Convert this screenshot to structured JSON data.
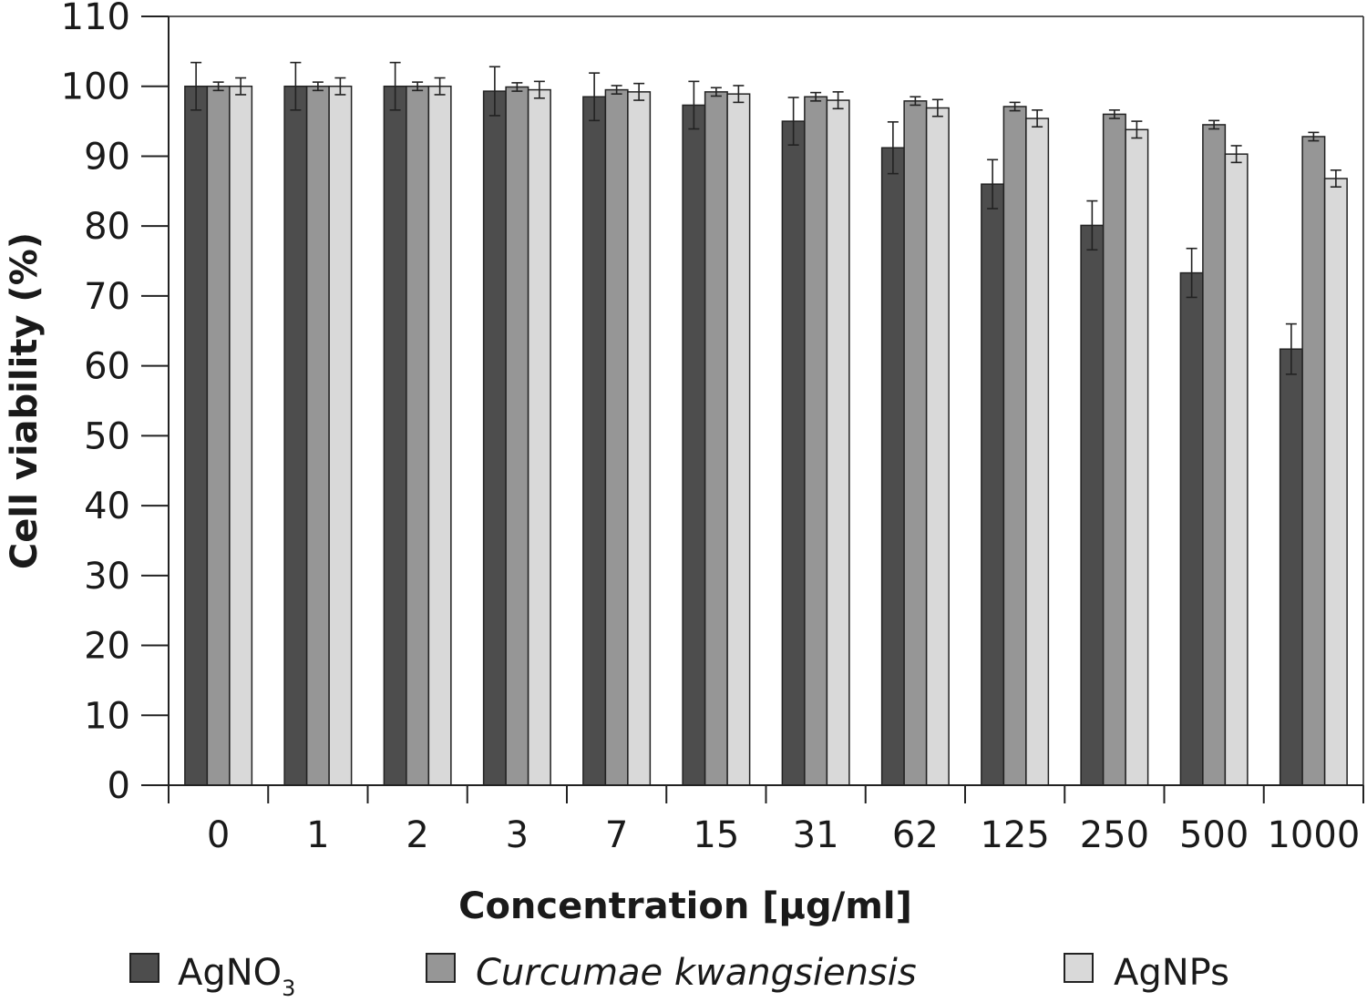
{
  "chart_data": {
    "type": "bar",
    "title": "",
    "xlabel": "Concentration [µg/ml]",
    "ylabel": "Cell viability (%)",
    "ylim": [
      0,
      110
    ],
    "yticks": [
      0,
      10,
      20,
      30,
      40,
      50,
      60,
      70,
      80,
      90,
      100,
      110
    ],
    "categories": [
      "0",
      "1",
      "2",
      "3",
      "7",
      "15",
      "31",
      "62",
      "125",
      "250",
      "500",
      "1000"
    ],
    "grid": false,
    "legend_position": "bottom",
    "series": [
      {
        "name": "AgNO3",
        "name_main": "AgNO",
        "name_sub": "3",
        "color": "#4d4d4d",
        "values": [
          100,
          100,
          100,
          99.3,
          98.5,
          97.3,
          95,
          91.2,
          86,
          80.1,
          73.3,
          62.4
        ],
        "errors": [
          3.4,
          3.4,
          3.4,
          3.5,
          3.4,
          3.4,
          3.4,
          3.7,
          3.5,
          3.5,
          3.5,
          3.6
        ]
      },
      {
        "name": "Curcumae kwangsiensis",
        "italic": true,
        "color": "#969696",
        "values": [
          100,
          100,
          100,
          99.9,
          99.5,
          99.2,
          98.5,
          97.9,
          97.1,
          96,
          94.5,
          92.8
        ],
        "errors": [
          0.6,
          0.6,
          0.6,
          0.6,
          0.6,
          0.6,
          0.6,
          0.6,
          0.6,
          0.6,
          0.6,
          0.6
        ]
      },
      {
        "name": "AgNPs",
        "color": "#d9d9d9",
        "values": [
          100,
          100,
          100,
          99.5,
          99.2,
          98.9,
          98,
          96.9,
          95.4,
          93.8,
          90.3,
          86.8
        ],
        "errors": [
          1.2,
          1.2,
          1.2,
          1.2,
          1.2,
          1.2,
          1.2,
          1.2,
          1.2,
          1.2,
          1.2,
          1.2
        ]
      }
    ]
  }
}
